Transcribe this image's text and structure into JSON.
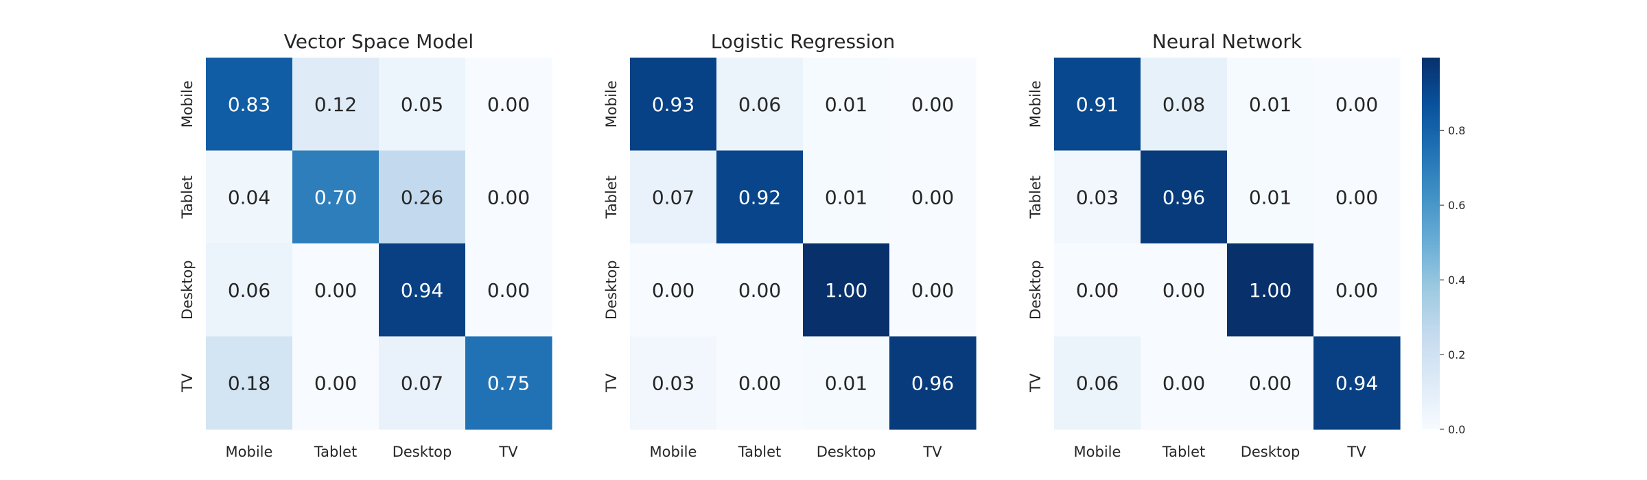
{
  "chart_data": [
    {
      "type": "heatmap",
      "title": "Vector Space Model",
      "x_categories": [
        "Mobile",
        "Tablet",
        "Desktop",
        "TV"
      ],
      "y_categories": [
        "Mobile",
        "Tablet",
        "Desktop",
        "TV"
      ],
      "values": [
        [
          0.83,
          0.12,
          0.05,
          0.0
        ],
        [
          0.04,
          0.7,
          0.26,
          0.0
        ],
        [
          0.06,
          0.0,
          0.94,
          0.0
        ],
        [
          0.18,
          0.0,
          0.07,
          0.75
        ]
      ],
      "value_labels": [
        [
          "0.83",
          "0.12",
          "0.05",
          "0.00"
        ],
        [
          "0.04",
          "0.70",
          "0.26",
          "0.00"
        ],
        [
          "0.06",
          "0.00",
          "0.94",
          "0.00"
        ],
        [
          "0.18",
          "0.00",
          "0.07",
          "0.75"
        ]
      ]
    },
    {
      "type": "heatmap",
      "title": "Logistic Regression",
      "x_categories": [
        "Mobile",
        "Tablet",
        "Desktop",
        "TV"
      ],
      "y_categories": [
        "Mobile",
        "Tablet",
        "Desktop",
        "TV"
      ],
      "values": [
        [
          0.93,
          0.06,
          0.01,
          0.0
        ],
        [
          0.07,
          0.92,
          0.01,
          0.0
        ],
        [
          0.0,
          0.0,
          1.0,
          0.0
        ],
        [
          0.03,
          0.0,
          0.01,
          0.96
        ]
      ],
      "value_labels": [
        [
          "0.93",
          "0.06",
          "0.01",
          "0.00"
        ],
        [
          "0.07",
          "0.92",
          "0.01",
          "0.00"
        ],
        [
          "0.00",
          "0.00",
          "1.00",
          "0.00"
        ],
        [
          "0.03",
          "0.00",
          "0.01",
          "0.96"
        ]
      ]
    },
    {
      "type": "heatmap",
      "title": "Neural Network",
      "x_categories": [
        "Mobile",
        "Tablet",
        "Desktop",
        "TV"
      ],
      "y_categories": [
        "Mobile",
        "Tablet",
        "Desktop",
        "TV"
      ],
      "values": [
        [
          0.91,
          0.08,
          0.01,
          0.0
        ],
        [
          0.03,
          0.96,
          0.01,
          0.0
        ],
        [
          0.0,
          0.0,
          1.0,
          0.0
        ],
        [
          0.06,
          0.0,
          0.0,
          0.94
        ]
      ],
      "value_labels": [
        [
          "0.91",
          "0.08",
          "0.01",
          "0.00"
        ],
        [
          "0.03",
          "0.96",
          "0.01",
          "0.00"
        ],
        [
          "0.00",
          "0.00",
          "1.00",
          "0.00"
        ],
        [
          "0.06",
          "0.00",
          "0.00",
          "0.94"
        ]
      ]
    }
  ],
  "colorbar": {
    "colormap": "Blues",
    "range": [
      0.0,
      1.0
    ],
    "ticks": [
      0.0,
      0.2,
      0.4,
      0.6,
      0.8
    ],
    "tick_labels": [
      "0.0",
      "0.2",
      "0.4",
      "0.6",
      "0.8"
    ]
  },
  "colors": {
    "low": "#f7fbff",
    "high": "#08306b",
    "label_dark": "#262626",
    "label_light": "#ffffff"
  }
}
